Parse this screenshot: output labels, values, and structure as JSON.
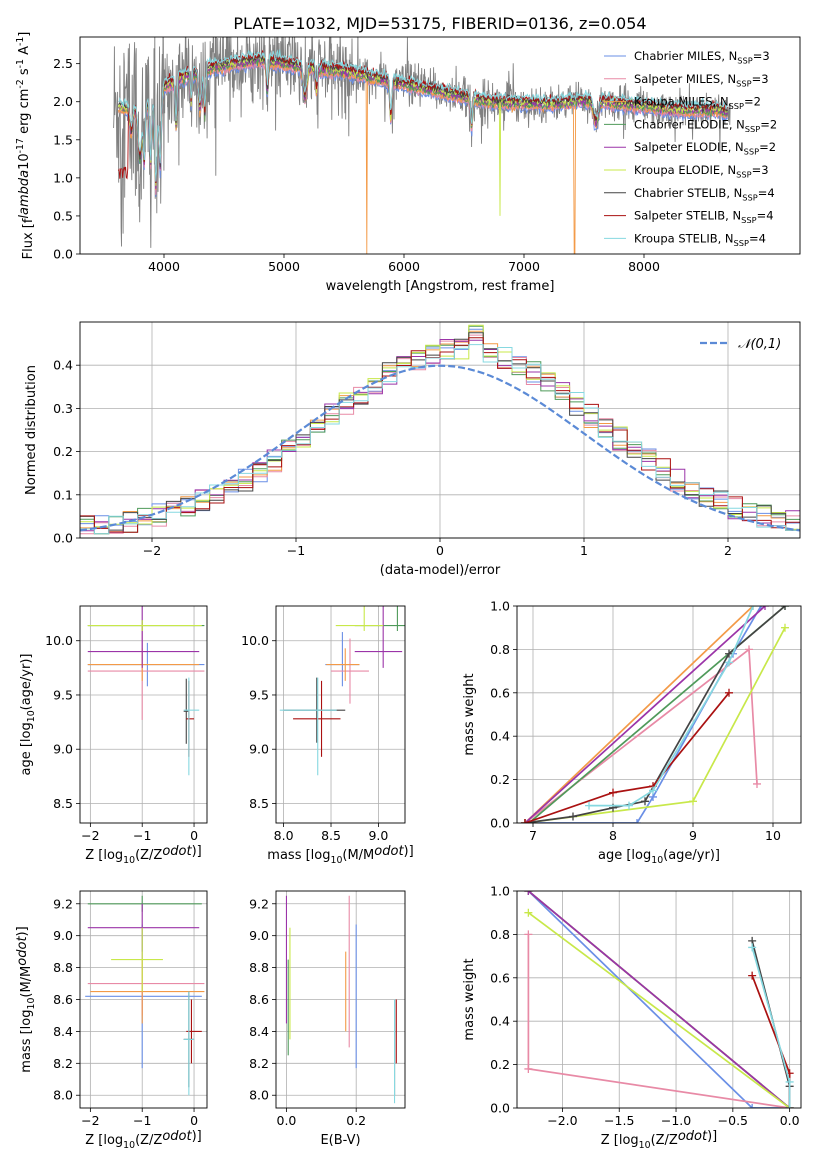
{
  "figure_title": "PLATE=1032, MJD=53175, FIBERID=0136, z=0.054",
  "colors": {
    "Chabrier MILES": "#6a8fe6",
    "Salpeter MILES": "#e88aa6",
    "Kroupa MILES": "#f39a47",
    "Chabrier ELODIE": "#4f9a5a",
    "Salpeter ELODIE": "#9b34a8",
    "Kroupa ELODIE": "#c8e84a",
    "Chabrier STELIB": "#444444",
    "Salpeter STELIB": "#aa1111",
    "Kroupa STELIB": "#86d8e0",
    "data": "#808080",
    "normal": "#5b8ad6"
  },
  "legend_entries": [
    {
      "name": "Chabrier MILES",
      "sub": "3"
    },
    {
      "name": "Salpeter MILES",
      "sub": "3"
    },
    {
      "name": "Kroupa MILES",
      "sub": "2"
    },
    {
      "name": "Chabrier ELODIE",
      "sub": "2"
    },
    {
      "name": "Salpeter ELODIE",
      "sub": "2"
    },
    {
      "name": "Kroupa ELODIE",
      "sub": "3"
    },
    {
      "name": "Chabrier STELIB",
      "sub": "4"
    },
    {
      "name": "Salpeter STELIB",
      "sub": "4"
    },
    {
      "name": "Kroupa STELIB",
      "sub": "4"
    }
  ],
  "chart_data": [
    {
      "id": "spectrum",
      "type": "line",
      "xlabel": "wavelength [Angstrom, rest frame]",
      "ylabel": "Flux [f$_\\lambda$10$^{-17}$ erg cm$^{-2}$ s$^{-1}$ A$^{-1}$]",
      "xlim": [
        3300,
        9300
      ],
      "ylim": [
        0,
        2.85
      ],
      "xticks": [
        4000,
        5000,
        6000,
        7000,
        8000
      ],
      "yticks": [
        0.0,
        0.5,
        1.0,
        1.5,
        2.0,
        2.5
      ],
      "legend_placement": "top-right",
      "model_continuum": [
        [
          3600,
          1.95
        ],
        [
          3700,
          1.9
        ],
        [
          3800,
          1.85
        ],
        [
          3900,
          2.0
        ],
        [
          4000,
          2.2
        ],
        [
          4200,
          2.35
        ],
        [
          4400,
          2.45
        ],
        [
          4600,
          2.5
        ],
        [
          4800,
          2.55
        ],
        [
          5000,
          2.5
        ],
        [
          5200,
          2.45
        ],
        [
          5500,
          2.4
        ],
        [
          5800,
          2.3
        ],
        [
          6100,
          2.2
        ],
        [
          6400,
          2.1
        ],
        [
          6700,
          2.0
        ],
        [
          7000,
          1.98
        ],
        [
          7200,
          1.97
        ],
        [
          7400,
          2.0
        ],
        [
          7600,
          2.02
        ],
        [
          7800,
          1.97
        ],
        [
          8000,
          1.95
        ],
        [
          8200,
          1.9
        ],
        [
          8400,
          1.88
        ],
        [
          8600,
          1.9
        ],
        [
          8700,
          1.85
        ]
      ]
    },
    {
      "id": "residuals",
      "type": "bar",
      "xlabel": "(data-model)/error",
      "ylabel": "Normed distribution",
      "xlim": [
        -2.5,
        2.5
      ],
      "ylim": [
        0,
        0.5
      ],
      "xticks": [
        -2,
        -1,
        0,
        1,
        2
      ],
      "xtick_labels": [
        "−2",
        "−1",
        "0",
        "1",
        "2"
      ],
      "yticks": [
        0.0,
        0.1,
        0.2,
        0.3,
        0.4
      ],
      "legend_label": "$\\mathcal{N}(0,1)$",
      "legend_placement": "top-right",
      "bin_width": 0.1
    },
    {
      "id": "age_vs_Z",
      "type": "scatter",
      "xlabel": "Z [log$_{10}$(Z/Z$_\\odot$)]",
      "ylabel": "age  [log$_{10}$(age/yr)]",
      "xlim": [
        -2.2,
        0.25
      ],
      "ylim": [
        8.32,
        10.32
      ],
      "xticks": [
        -2,
        -1,
        0
      ],
      "xtick_labels": [
        "−2",
        "−1",
        "0"
      ],
      "yticks": [
        8.5,
        9.0,
        9.5,
        10.0
      ],
      "points": [
        {
          "model": "Chabrier MILES",
          "x": -0.9,
          "xerr": [
            1.15,
            1.1
          ],
          "y": 9.78,
          "yerr": [
            0.2,
            0.2
          ]
        },
        {
          "model": "Salpeter MILES",
          "x": -1.0,
          "xerr": [
            1.05,
            1.2
          ],
          "y": 9.72,
          "yerr": [
            0.45,
            0.45
          ]
        },
        {
          "model": "Kroupa MILES",
          "x": -1.0,
          "xerr": [
            1.05,
            1.1
          ],
          "y": 9.78,
          "yerr": [
            0.15,
            0.15
          ]
        },
        {
          "model": "Chabrier ELODIE",
          "x": -1.0,
          "xerr": [
            1.05,
            1.2
          ],
          "y": 10.14,
          "yerr": [
            0.05,
            0.05
          ]
        },
        {
          "model": "Salpeter ELODIE",
          "x": -1.0,
          "xerr": [
            1.05,
            1.1
          ],
          "y": 9.9,
          "yerr": [
            0.15,
            1.15
          ]
        },
        {
          "model": "Kroupa ELODIE",
          "x": -1.0,
          "xerr": [
            1.05,
            1.15
          ],
          "y": 10.14,
          "yerr": [
            0.05,
            0.05
          ]
        },
        {
          "model": "Chabrier STELIB",
          "x": -0.15,
          "xerr": [
            0.05,
            0.05
          ],
          "y": 9.35,
          "yerr": [
            0.3,
            0.3
          ]
        },
        {
          "model": "Salpeter STELIB",
          "x": -0.1,
          "xerr": [
            0.05,
            0.1
          ],
          "y": 9.28,
          "yerr": [
            0.35,
            0.35
          ]
        },
        {
          "model": "Kroupa STELIB",
          "x": -0.1,
          "xerr": [
            0.1,
            0.2
          ],
          "y": 9.36,
          "yerr": [
            0.6,
            0.3
          ]
        }
      ]
    },
    {
      "id": "age_vs_mass",
      "type": "scatter",
      "xlabel": "mass [log$_{10}$(M/M$_\\odot$)]",
      "xlim": [
        7.92,
        9.28
      ],
      "ylim": [
        8.32,
        10.32
      ],
      "xticks": [
        8.0,
        8.5,
        9.0
      ],
      "yticks": [
        8.5,
        9.0,
        9.5,
        10.0
      ],
      "points": [
        {
          "model": "Chabrier MILES",
          "x": 8.62,
          "xerr": [
            0.18,
            0.18
          ],
          "y": 9.78,
          "yerr": [
            0.2,
            0.3
          ]
        },
        {
          "model": "Salpeter MILES",
          "x": 8.7,
          "xerr": [
            0.2,
            0.2
          ],
          "y": 9.72,
          "yerr": [
            0.3,
            0.3
          ]
        },
        {
          "model": "Kroupa MILES",
          "x": 8.65,
          "xerr": [
            0.2,
            0.15
          ],
          "y": 9.78,
          "yerr": [
            0.15,
            0.15
          ]
        },
        {
          "model": "Chabrier ELODIE",
          "x": 9.2,
          "xerr": [
            0.45,
            0.1
          ],
          "y": 10.14,
          "yerr": [
            0.05,
            1.4
          ]
        },
        {
          "model": "Salpeter ELODIE",
          "x": 9.05,
          "xerr": [
            0.3,
            0.2
          ],
          "y": 9.9,
          "yerr": [
            0.15,
            1.1
          ]
        },
        {
          "model": "Kroupa ELODIE",
          "x": 8.85,
          "xerr": [
            0.3,
            0.2
          ],
          "y": 10.14,
          "yerr": [
            0.05,
            0.2
          ]
        },
        {
          "model": "Chabrier STELIB",
          "x": 8.35,
          "xerr": [
            0.35,
            0.3
          ],
          "y": 9.36,
          "yerr": [
            0.3,
            0.3
          ]
        },
        {
          "model": "Salpeter STELIB",
          "x": 8.4,
          "xerr": [
            0.3,
            0.2
          ],
          "y": 9.28,
          "yerr": [
            0.35,
            0.35
          ]
        },
        {
          "model": "Kroupa STELIB",
          "x": 8.36,
          "xerr": [
            0.4,
            0.2
          ],
          "y": 9.36,
          "yerr": [
            0.6,
            0.3
          ]
        }
      ]
    },
    {
      "id": "mass_weight_vs_age",
      "type": "line",
      "xlabel": "age  [log$_{10}$(age/yr)]",
      "ylabel": "mass weight",
      "xlim": [
        6.8,
        10.35
      ],
      "ylim": [
        0,
        1.0
      ],
      "xticks": [
        7,
        8,
        9,
        10
      ],
      "yticks": [
        0.0,
        0.2,
        0.4,
        0.6,
        0.8,
        1.0
      ],
      "series": [
        {
          "model": "Chabrier MILES",
          "points": [
            [
              6.9,
              0.0
            ],
            [
              8.3,
              0.0
            ],
            [
              8.5,
              0.12
            ],
            [
              9.5,
              0.78
            ],
            [
              9.85,
              1.0
            ]
          ]
        },
        {
          "model": "Salpeter MILES",
          "points": [
            [
              6.9,
              0.0
            ],
            [
              9.7,
              0.8
            ],
            [
              9.8,
              0.18
            ]
          ]
        },
        {
          "model": "Kroupa MILES",
          "points": [
            [
              6.9,
              0.0
            ],
            [
              9.75,
              1.0
            ]
          ]
        },
        {
          "model": "Chabrier ELODIE",
          "points": [
            [
              6.95,
              0.0
            ],
            [
              10.15,
              1.0
            ]
          ]
        },
        {
          "model": "Salpeter ELODIE",
          "points": [
            [
              6.9,
              0.0
            ],
            [
              9.9,
              1.0
            ]
          ]
        },
        {
          "model": "Kroupa ELODIE",
          "points": [
            [
              6.9,
              0.0
            ],
            [
              9.0,
              0.1
            ],
            [
              10.15,
              0.9
            ]
          ]
        },
        {
          "model": "Chabrier STELIB",
          "points": [
            [
              6.9,
              0.0
            ],
            [
              7.5,
              0.03
            ],
            [
              8.0,
              0.07
            ],
            [
              8.4,
              0.1
            ],
            [
              9.45,
              0.78
            ],
            [
              10.15,
              1.0
            ]
          ]
        },
        {
          "model": "Salpeter STELIB",
          "points": [
            [
              6.9,
              0.0
            ],
            [
              8.0,
              0.14
            ],
            [
              8.5,
              0.17
            ],
            [
              9.45,
              0.6
            ]
          ]
        },
        {
          "model": "Kroupa STELIB",
          "points": [
            [
              7.7,
              0.08
            ],
            [
              8.2,
              0.08
            ],
            [
              8.5,
              0.15
            ],
            [
              9.45,
              0.74
            ],
            [
              9.75,
              1.0
            ]
          ]
        }
      ]
    },
    {
      "id": "mass_vs_Z",
      "type": "scatter",
      "xlabel": "Z [log$_{10}$(Z/Z$_\\odot$)]",
      "ylabel": "mass [log$_{10}$(M/M$_\\odot$)]",
      "xlim": [
        -2.2,
        0.25
      ],
      "ylim": [
        7.92,
        9.28
      ],
      "xticks": [
        -2,
        -1,
        0
      ],
      "xtick_labels": [
        "−2",
        "−1",
        "0"
      ],
      "yticks": [
        8.0,
        8.2,
        8.4,
        8.6,
        8.8,
        9.0,
        9.2
      ],
      "points": [
        {
          "model": "Chabrier MILES",
          "x": -1.0,
          "xerr": [
            1.1,
            1.15
          ],
          "y": 8.62,
          "yerr": [
            0.45,
            0.45
          ]
        },
        {
          "model": "Salpeter MILES",
          "x": -1.0,
          "xerr": [
            1.05,
            1.2
          ],
          "y": 8.7,
          "yerr": [
            0.2,
            0.2
          ]
        },
        {
          "model": "Kroupa MILES",
          "x": -1.0,
          "xerr": [
            1.0,
            1.2
          ],
          "y": 8.65,
          "yerr": [
            0.2,
            0.2
          ]
        },
        {
          "model": "Chabrier ELODIE",
          "x": -1.0,
          "xerr": [
            1.05,
            1.15
          ],
          "y": 9.2,
          "yerr": [
            0.05,
            0.05
          ]
        },
        {
          "model": "Salpeter ELODIE",
          "x": -1.0,
          "xerr": [
            1.05,
            1.1
          ],
          "y": 9.05,
          "yerr": [
            0.15,
            0.15
          ]
        },
        {
          "model": "Kroupa ELODIE",
          "x": -1.0,
          "xerr": [
            0.6,
            0.4
          ],
          "y": 8.85,
          "yerr": [
            0.2,
            0.2
          ]
        },
        {
          "model": "Chabrier STELIB",
          "x": -0.1,
          "xerr": [
            0.1,
            0.1
          ],
          "y": 8.35,
          "yerr": [
            0.3,
            0.3
          ]
        },
        {
          "model": "Salpeter STELIB",
          "x": -0.05,
          "xerr": [
            0.1,
            0.2
          ],
          "y": 8.4,
          "yerr": [
            0.2,
            0.2
          ]
        },
        {
          "model": "Kroupa STELIB",
          "x": -0.1,
          "xerr": [
            0.1,
            0.1
          ],
          "y": 8.35,
          "yerr": [
            0.35,
            0.3
          ]
        }
      ]
    },
    {
      "id": "mass_vs_EBV",
      "type": "scatter",
      "xlabel": "E(B-V)",
      "xlim": [
        -0.03,
        0.34
      ],
      "ylim": [
        7.92,
        9.28
      ],
      "xticks": [
        0.0,
        0.2
      ],
      "yticks": [
        8.0,
        8.2,
        8.4,
        8.6,
        8.8,
        9.0,
        9.2
      ],
      "points": [
        {
          "model": "Chabrier MILES",
          "x": 0.2,
          "y": 8.62,
          "yerr": [
            0.45,
            0.45
          ]
        },
        {
          "model": "Salpeter MILES",
          "x": 0.18,
          "y": 8.7,
          "yerr": [
            0.4,
            0.55
          ]
        },
        {
          "model": "Kroupa MILES",
          "x": 0.17,
          "y": 8.65,
          "yerr": [
            0.25,
            0.25
          ]
        },
        {
          "model": "Chabrier ELODIE",
          "x": 0.005,
          "y": 8.55,
          "yerr": [
            0.3,
            0.3
          ]
        },
        {
          "model": "Salpeter ELODIE",
          "x": 0.0,
          "y": 8.85,
          "yerr": [
            0.4,
            0.4
          ]
        },
        {
          "model": "Kroupa ELODIE",
          "x": 0.01,
          "y": 8.7,
          "yerr": [
            0.35,
            0.35
          ]
        },
        {
          "model": "Chabrier STELIB",
          "x": 0.31,
          "y": 8.3,
          "yerr": [
            0.3,
            0.3
          ]
        },
        {
          "model": "Salpeter STELIB",
          "x": 0.315,
          "y": 8.4,
          "yerr": [
            0.2,
            0.2
          ]
        },
        {
          "model": "Kroupa STELIB",
          "x": 0.31,
          "y": 8.3,
          "yerr": [
            0.35,
            0.3
          ]
        }
      ]
    },
    {
      "id": "mass_weight_vs_Z",
      "type": "line",
      "xlabel": "Z [log$_{10}$(Z/Z$_\\odot$)]",
      "ylabel": "mass weight",
      "xlim": [
        -2.4,
        0.1
      ],
      "ylim": [
        0,
        1.0
      ],
      "xticks": [
        -2.0,
        -1.5,
        -1.0,
        -0.5,
        0.0
      ],
      "xtick_labels": [
        "−2.0",
        "−1.5",
        "−1.0",
        "−0.5",
        "0.0"
      ],
      "yticks": [
        0.0,
        0.2,
        0.4,
        0.6,
        0.8,
        1.0
      ],
      "series": [
        {
          "model": "Chabrier MILES",
          "points": [
            [
              -2.3,
              1.0
            ],
            [
              -0.33,
              0.0
            ],
            [
              0.0,
              0.0
            ]
          ]
        },
        {
          "model": "Salpeter MILES",
          "points": [
            [
              -2.3,
              0.8
            ],
            [
              -2.3,
              0.18
            ],
            [
              0.0,
              0.0
            ]
          ]
        },
        {
          "model": "Kroupa MILES",
          "points": [
            [
              -2.3,
              1.0
            ],
            [
              0.0,
              0.0
            ]
          ]
        },
        {
          "model": "Chabrier ELODIE",
          "points": [
            [
              -2.3,
              1.0
            ],
            [
              0.0,
              0.0
            ]
          ]
        },
        {
          "model": "Salpeter ELODIE",
          "points": [
            [
              -2.3,
              1.0
            ],
            [
              0.0,
              0.0
            ]
          ]
        },
        {
          "model": "Kroupa ELODIE",
          "points": [
            [
              -2.3,
              0.9
            ],
            [
              0.0,
              0.0
            ]
          ]
        },
        {
          "model": "Chabrier STELIB",
          "points": [
            [
              -0.33,
              0.77
            ],
            [
              0.0,
              0.1
            ],
            [
              0.0,
              0.0
            ]
          ]
        },
        {
          "model": "Salpeter STELIB",
          "points": [
            [
              -0.33,
              0.61
            ],
            [
              0.0,
              0.16
            ],
            [
              0.0,
              0.0
            ]
          ]
        },
        {
          "model": "Kroupa STELIB",
          "points": [
            [
              -0.33,
              0.74
            ],
            [
              0.0,
              0.12
            ],
            [
              0.0,
              0.0
            ]
          ]
        }
      ]
    }
  ]
}
